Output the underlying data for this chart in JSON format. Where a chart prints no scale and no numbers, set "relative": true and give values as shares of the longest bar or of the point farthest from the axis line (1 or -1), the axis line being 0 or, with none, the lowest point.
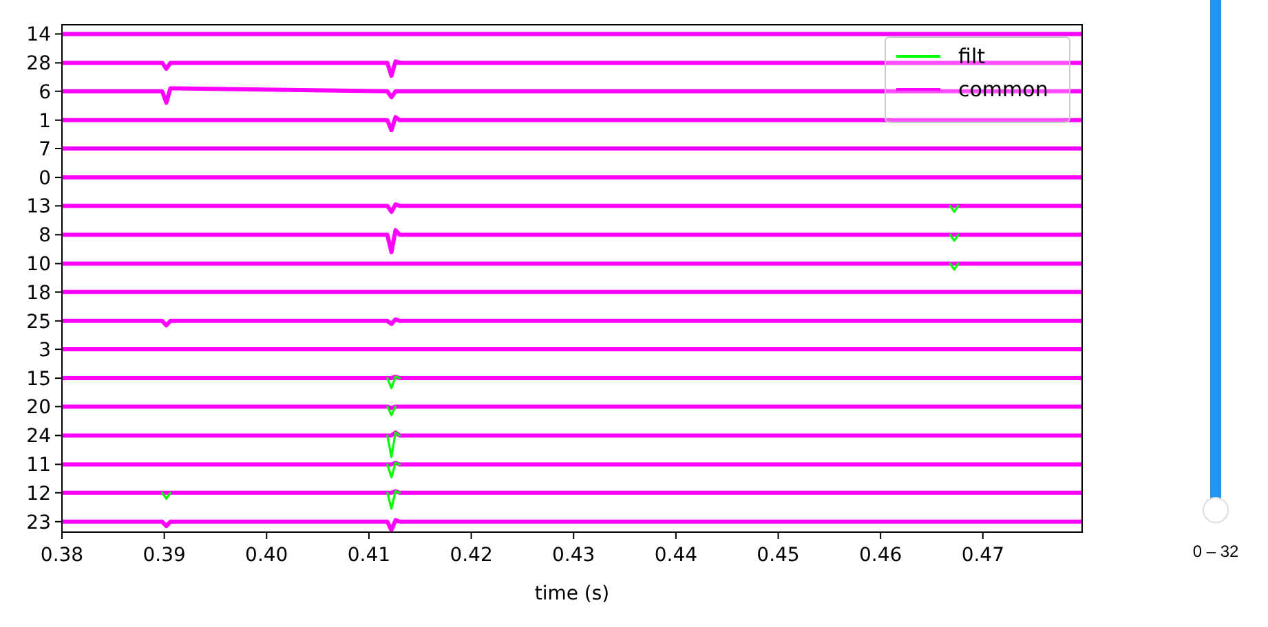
{
  "chart_data": {
    "type": "line",
    "relative": true,
    "xlabel": "time (s)",
    "legend": "top right",
    "annotations": [
      "14",
      "28",
      "6",
      "1",
      "7",
      "0",
      "13",
      "8",
      "10",
      "18",
      "25",
      "3",
      "15",
      "20",
      "24",
      "11",
      "12",
      "23",
      "0 – 32"
    ],
    "x": [
      0.38,
      0.3898,
      0.3902,
      0.3906,
      0.4118,
      0.4122,
      0.4126,
      0.413,
      0.4668,
      0.4672,
      0.4676,
      0.4797
    ],
    "xlim": [
      0.38,
      0.4797
    ],
    "xticks": [
      0.38,
      0.39,
      {
        "value": 0.4,
        "label": "0.40"
      },
      0.41,
      0.42,
      0.43,
      0.44,
      0.45,
      0.46,
      0.47
    ],
    "series": [
      {
        "name": "common",
        "color": "#ff00ff",
        "values": [
          1,
          1,
          1,
          1,
          1,
          1,
          1,
          1,
          1,
          1,
          1,
          1
        ]
      },
      {
        "color": "#ff00ff",
        "values": [
          0.942,
          0.942,
          0.93,
          0.942,
          0.942,
          0.916,
          0.945,
          0.942,
          0.942,
          0.942,
          0.942,
          0.942
        ]
      },
      {
        "color": "#ff00ff",
        "values": [
          0.885,
          0.885,
          0.862,
          0.891,
          0.885,
          0.873,
          0.885,
          0.885,
          0.885,
          0.885,
          0.885,
          0.885
        ]
      },
      {
        "color": "#ff00ff",
        "values": [
          0.827,
          0.827,
          0.827,
          0.827,
          0.827,
          0.807,
          0.833,
          0.827,
          0.827,
          0.827,
          0.827,
          0.827
        ]
      },
      {
        "color": "#ff00ff",
        "values": [
          0.77,
          0.77,
          0.77,
          0.77,
          0.77,
          0.77,
          0.77,
          0.77,
          0.77,
          0.77,
          0.77,
          0.77
        ]
      },
      {
        "color": "#ff00ff",
        "values": [
          0.712,
          0.712,
          0.712,
          0.712,
          0.712,
          0.712,
          0.712,
          0.712,
          0.712,
          0.712,
          0.712,
          0.712
        ]
      },
      {
        "color": "#ff00ff",
        "values": [
          0.655,
          0.655,
          0.655,
          0.655,
          0.655,
          0.643,
          0.658,
          0.655,
          0.655,
          0.655,
          0.655,
          0.655
        ]
      },
      {
        "color": "#ff00ff",
        "values": [
          0.597,
          0.597,
          0.597,
          0.597,
          0.597,
          0.562,
          0.606,
          0.597,
          0.597,
          0.597,
          0.597,
          0.597
        ]
      },
      {
        "color": "#ff00ff",
        "values": [
          0.539,
          0.539,
          0.539,
          0.539,
          0.539,
          0.539,
          0.539,
          0.539,
          0.539,
          0.539,
          0.539,
          0.539
        ]
      },
      {
        "color": "#ff00ff",
        "values": [
          0.482,
          0.482,
          0.482,
          0.482,
          0.482,
          0.482,
          0.482,
          0.482,
          0.482,
          0.482,
          0.482,
          0.482
        ]
      },
      {
        "color": "#ff00ff",
        "values": [
          0.424,
          0.424,
          0.415,
          0.424,
          0.424,
          0.418,
          0.427,
          0.424,
          0.424,
          0.424,
          0.424,
          0.424
        ]
      },
      {
        "color": "#ff00ff",
        "values": [
          0.367,
          0.367,
          0.367,
          0.367,
          0.367,
          0.367,
          0.367,
          0.367,
          0.367,
          0.367,
          0.367,
          0.367
        ]
      },
      {
        "color": "#ff00ff",
        "values": [
          0.309,
          0.309,
          0.309,
          0.309,
          0.309,
          0.309,
          0.312,
          0.309,
          0.309,
          0.309,
          0.309,
          0.309
        ]
      },
      {
        "color": "#ff00ff",
        "values": [
          0.252,
          0.252,
          0.252,
          0.252,
          0.252,
          0.249,
          0.252,
          0.252,
          0.252,
          0.252,
          0.252,
          0.252
        ]
      },
      {
        "color": "#ff00ff",
        "values": [
          0.194,
          0.194,
          0.194,
          0.194,
          0.194,
          0.194,
          0.2,
          0.194,
          0.194,
          0.194,
          0.194,
          0.194
        ]
      },
      {
        "color": "#ff00ff",
        "values": [
          0.136,
          0.136,
          0.136,
          0.136,
          0.136,
          0.136,
          0.139,
          0.136,
          0.136,
          0.136,
          0.136,
          0.136
        ]
      },
      {
        "color": "#ff00ff",
        "values": [
          0.079,
          0.079,
          0.079,
          0.079,
          0.079,
          0.079,
          0.082,
          0.079,
          0.079,
          0.079,
          0.079,
          0.079
        ]
      },
      {
        "color": "#ff00ff",
        "values": [
          0.021,
          0.021,
          0.012,
          0.021,
          0.021,
          0.004,
          0.024,
          0.021,
          0.021,
          0.021,
          0.021,
          0.021
        ]
      },
      {
        "name": "filt",
        "color": "#00ff00",
        "values": [
          null,
          null,
          null,
          null,
          null,
          null,
          null,
          null,
          0.655,
          0.643,
          0.655,
          null
        ]
      },
      {
        "color": "#00ff00",
        "values": [
          null,
          null,
          null,
          null,
          null,
          null,
          null,
          null,
          0.597,
          0.585,
          0.597,
          null
        ]
      },
      {
        "color": "#00ff00",
        "values": [
          null,
          null,
          null,
          null,
          null,
          null,
          null,
          null,
          0.539,
          0.527,
          0.539,
          null
        ]
      },
      {
        "color": "#00ff00",
        "values": [
          null,
          null,
          null,
          null,
          0.309,
          0.289,
          0.312,
          0.309,
          null,
          null,
          null,
          null
        ]
      },
      {
        "color": "#00ff00",
        "values": [
          null,
          null,
          null,
          null,
          0.252,
          0.235,
          0.252,
          null,
          null,
          null,
          null,
          null
        ]
      },
      {
        "color": "#00ff00",
        "values": [
          null,
          null,
          null,
          null,
          0.194,
          0.151,
          0.2,
          0.194,
          null,
          null,
          null,
          null
        ]
      },
      {
        "color": "#00ff00",
        "values": [
          null,
          null,
          null,
          null,
          0.136,
          0.11,
          0.139,
          0.136,
          null,
          null,
          null,
          null
        ]
      },
      {
        "color": "#00ff00",
        "values": [
          null,
          0.079,
          0.067,
          0.079,
          null,
          null,
          null,
          null,
          null,
          null,
          null,
          null
        ]
      },
      {
        "color": "#00ff00",
        "values": [
          null,
          null,
          null,
          null,
          0.079,
          0.047,
          0.082,
          0.079,
          null,
          null,
          null,
          null
        ]
      }
    ]
  }
}
